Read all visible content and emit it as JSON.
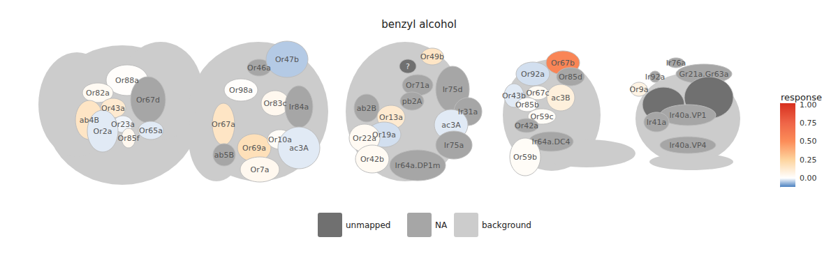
{
  "chart_data": {
    "type": "map",
    "title": "benzyl alcohol",
    "panels": [
      [
        {
          "name": "Or88a",
          "response": 0.01
        },
        {
          "name": "Or82a",
          "response": 0.03
        },
        {
          "name": "Or67d",
          "response": null,
          "status": "NA"
        },
        {
          "name": "ab4B",
          "response": 0.15
        },
        {
          "name": "Or43a",
          "response": 0.12
        },
        {
          "name": "Or23a",
          "response": -0.01
        },
        {
          "name": "Or2a",
          "response": -0.02
        },
        {
          "name": "Or85f",
          "response": 0.04
        },
        {
          "name": "Or65a",
          "response": -0.02
        }
      ],
      [
        {
          "name": "Or46a",
          "response": null,
          "status": "NA"
        },
        {
          "name": "Or47b",
          "response": -0.05
        },
        {
          "name": "Or98a",
          "response": 0.01
        },
        {
          "name": "Or83c",
          "response": 0.04
        },
        {
          "name": "Ir84a",
          "response": null,
          "status": "NA"
        },
        {
          "name": "Or67a",
          "response": 0.15
        },
        {
          "name": "Or69a",
          "response": 0.18
        },
        {
          "name": "Or10a",
          "response": 0.02
        },
        {
          "name": "ab5B",
          "response": null,
          "status": "NA"
        },
        {
          "name": "Or7a",
          "response": 0.04
        },
        {
          "name": "ac3A",
          "response": -0.02
        }
      ],
      [
        {
          "name": "?",
          "response": null,
          "status": "unmapped"
        },
        {
          "name": "Or49b",
          "response": 0.15
        },
        {
          "name": "Or71a",
          "response": null,
          "status": "NA"
        },
        {
          "name": "Ir75d",
          "response": null,
          "status": "NA"
        },
        {
          "name": "ab2B",
          "response": null,
          "status": "NA"
        },
        {
          "name": "pb2A",
          "response": null,
          "status": "NA"
        },
        {
          "name": "Ir31a",
          "response": null,
          "status": "NA"
        },
        {
          "name": "Or13a",
          "response": 0.12
        },
        {
          "name": "Or19a",
          "response": -0.03
        },
        {
          "name": "ac3A",
          "response": -0.02
        },
        {
          "name": "Or22a",
          "response": 0.03
        },
        {
          "name": "Ir75a",
          "response": null,
          "status": "NA"
        },
        {
          "name": "Or42b",
          "response": 0.03
        },
        {
          "name": "Ir64a.DP1m",
          "response": null,
          "status": "NA"
        }
      ],
      [
        {
          "name": "Or92a",
          "response": -0.03
        },
        {
          "name": "Or67b",
          "response": 0.55
        },
        {
          "name": "Or85d",
          "response": null,
          "status": "NA"
        },
        {
          "name": "Or43b",
          "response": -0.02
        },
        {
          "name": "Or67c",
          "response": 0.03
        },
        {
          "name": "Or85b",
          "response": 0.01
        },
        {
          "name": "ac3B",
          "response": 0.09
        },
        {
          "name": "Or59c",
          "response": 0.02
        },
        {
          "name": "Or42a",
          "response": null,
          "status": "NA"
        },
        {
          "name": "Ir64a.DC4",
          "response": null,
          "status": "NA"
        },
        {
          "name": "Or59b",
          "response": 0.02
        }
      ],
      [
        {
          "name": "Ir76a",
          "response": null,
          "status": "NA"
        },
        {
          "name": "Ir92a",
          "response": null,
          "status": "NA"
        },
        {
          "name": "Gr21a.Gr63a",
          "response": null,
          "status": "NA"
        },
        {
          "name": "Or9a",
          "response": 0.07
        },
        {
          "name": null,
          "response": null,
          "status": "unmapped"
        },
        {
          "name": null,
          "response": null,
          "status": "unmapped"
        },
        {
          "name": "Ir40a.VP1",
          "response": null,
          "status": "NA"
        },
        {
          "name": "Ir41a",
          "response": null,
          "status": "NA"
        },
        {
          "name": "Ir40a.VP4",
          "response": null,
          "status": "NA"
        }
      ]
    ],
    "fills": [
      {
        "name": "unmapped",
        "color": "#707070"
      },
      {
        "name": "NA",
        "color": "#a6a6a6"
      },
      {
        "name": "background",
        "color": "#cccccc"
      }
    ],
    "legend": "bottom",
    "colorbar": {
      "title": "response",
      "range": [
        -0.12,
        1.02
      ],
      "ticks": [
        {
          "value": 0,
          "label": "0.00"
        },
        {
          "value": 0.25,
          "label": "0.25"
        },
        {
          "value": 0.5,
          "label": "0.50"
        },
        {
          "value": 0.75,
          "label": "0.75"
        },
        {
          "value": 1,
          "label": "1.00"
        }
      ],
      "colors": [
        {
          "value": -0.12,
          "color": "#4a80c0"
        },
        {
          "value": 0,
          "color": "#ffffff"
        },
        {
          "value": 0.25,
          "color": "#fdd49e"
        },
        {
          "value": 0.5,
          "color": "#fc8d59"
        },
        {
          "value": 0.75,
          "color": "#ef6548"
        },
        {
          "value": 1.02,
          "color": "#d7301f"
        }
      ]
    }
  }
}
